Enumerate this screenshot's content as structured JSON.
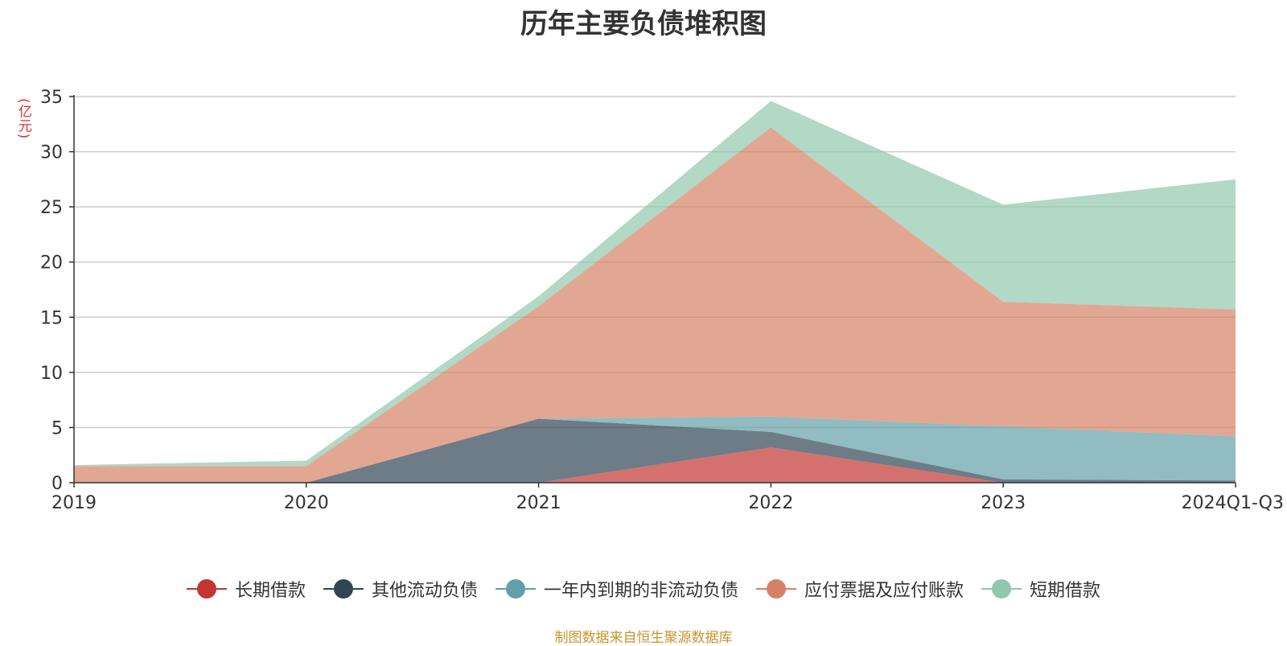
{
  "chart_data": {
    "type": "area",
    "stacked": true,
    "title": "历年主要负债堆积图",
    "unit": "(亿元)",
    "categories": [
      "2019",
      "2020",
      "2021",
      "2022",
      "2023",
      "2024Q1-Q3"
    ],
    "ylim": [
      0,
      35
    ],
    "yticks": [
      0,
      5,
      10,
      15,
      20,
      25,
      30,
      35
    ],
    "grid": true,
    "legend_position": "bottom",
    "series": [
      {
        "name": "长期借款",
        "color": "#c23531",
        "values": [
          0,
          0,
          0,
          3.2,
          0,
          0
        ]
      },
      {
        "name": "其他流动负债",
        "color": "#2f4554",
        "values": [
          0,
          0,
          5.8,
          1.4,
          0.3,
          0.2
        ]
      },
      {
        "name": "一年内到期的非流动负债",
        "color": "#61a0a8",
        "values": [
          0,
          0,
          0,
          1.4,
          4.8,
          4.0
        ]
      },
      {
        "name": "应付票据及应付账款",
        "color": "#d48265",
        "values": [
          1.5,
          1.5,
          10.2,
          26.2,
          11.3,
          11.5
        ]
      },
      {
        "name": "短期借款",
        "color": "#91c7ae",
        "values": [
          0.1,
          0.5,
          0.9,
          2.4,
          8.8,
          11.8
        ]
      }
    ]
  },
  "source_note": "制图数据来自恒生聚源数据库"
}
